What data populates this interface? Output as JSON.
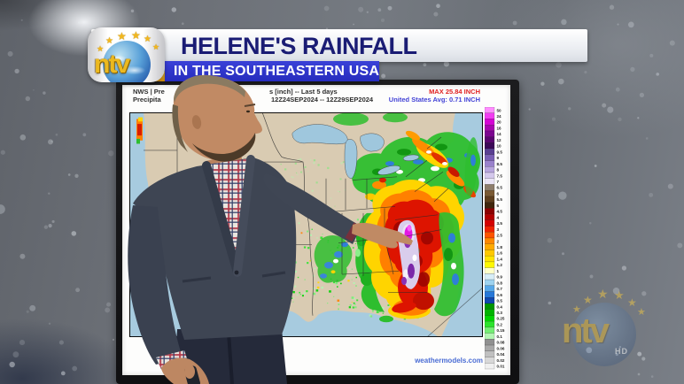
{
  "banner": {
    "title": "HELENE'S RAINFALL",
    "subtitle": "IN THE SOUTHEASTERN USA",
    "title_color": "#1a1c74",
    "bar_color": "#2d33cb"
  },
  "logo": {
    "text": "ntv"
  },
  "watermark": {
    "text": "ntv",
    "hd": "HD"
  },
  "map_panel": {
    "header": {
      "line1_left": "NWS | Pre",
      "line1_right": "s [inch] -- Last 5 days",
      "line2_left": "Precipita",
      "line2_right": "12Z24SEP2024 -- 12Z29SEP2024",
      "max": "MAX 25.84 INCH",
      "avg": "United States Avg: 0.71 INCH",
      "max_color": "#e02222",
      "avg_color": "#4343d6"
    },
    "credit": "weathermodels.com",
    "colorbar": {
      "values": [
        "50",
        "24",
        "20",
        "16",
        "14",
        "12",
        "10",
        "9.5",
        "9",
        "8.5",
        "8",
        "7.5",
        "7",
        "6.5",
        "6",
        "5.5",
        "5",
        "4.5",
        "4",
        "3.5",
        "3",
        "2.5",
        "2",
        "1.8",
        "1.6",
        "1.4",
        "1.2",
        "1",
        "0.9",
        "0.8",
        "0.7",
        "0.6",
        "0.5",
        "0.4",
        "0.3",
        "0.25",
        "0.2",
        "0.15",
        "0.1",
        "0.08",
        "0.06",
        "0.04",
        "0.02",
        "0.01"
      ],
      "colors": [
        "#ff8cff",
        "#f23cf2",
        "#d405d4",
        "#a805b0",
        "#7c0590",
        "#5a0570",
        "#3c0858",
        "#5a3f92",
        "#7a5fb4",
        "#9a82cc",
        "#b8a6de",
        "#d4c8ec",
        "#eae4f6",
        "#8d7d6c",
        "#7a5a34",
        "#5e3f1e",
        "#40260c",
        "#8c0000",
        "#b20000",
        "#d40000",
        "#ee2200",
        "#ff5500",
        "#ff8800",
        "#ffaa00",
        "#ffc800",
        "#ffe400",
        "#fff800",
        "#ffffc8",
        "#d8eef8",
        "#9ed3f0",
        "#58a8e8",
        "#2878d8",
        "#1048b0",
        "#009600",
        "#00b400",
        "#00d400",
        "#2ce42c",
        "#74ee74",
        "#b2f6b2",
        "#909090",
        "#a8a8a8",
        "#c0c0c0",
        "#d8d8d8",
        "#f0f0f0"
      ]
    }
  }
}
